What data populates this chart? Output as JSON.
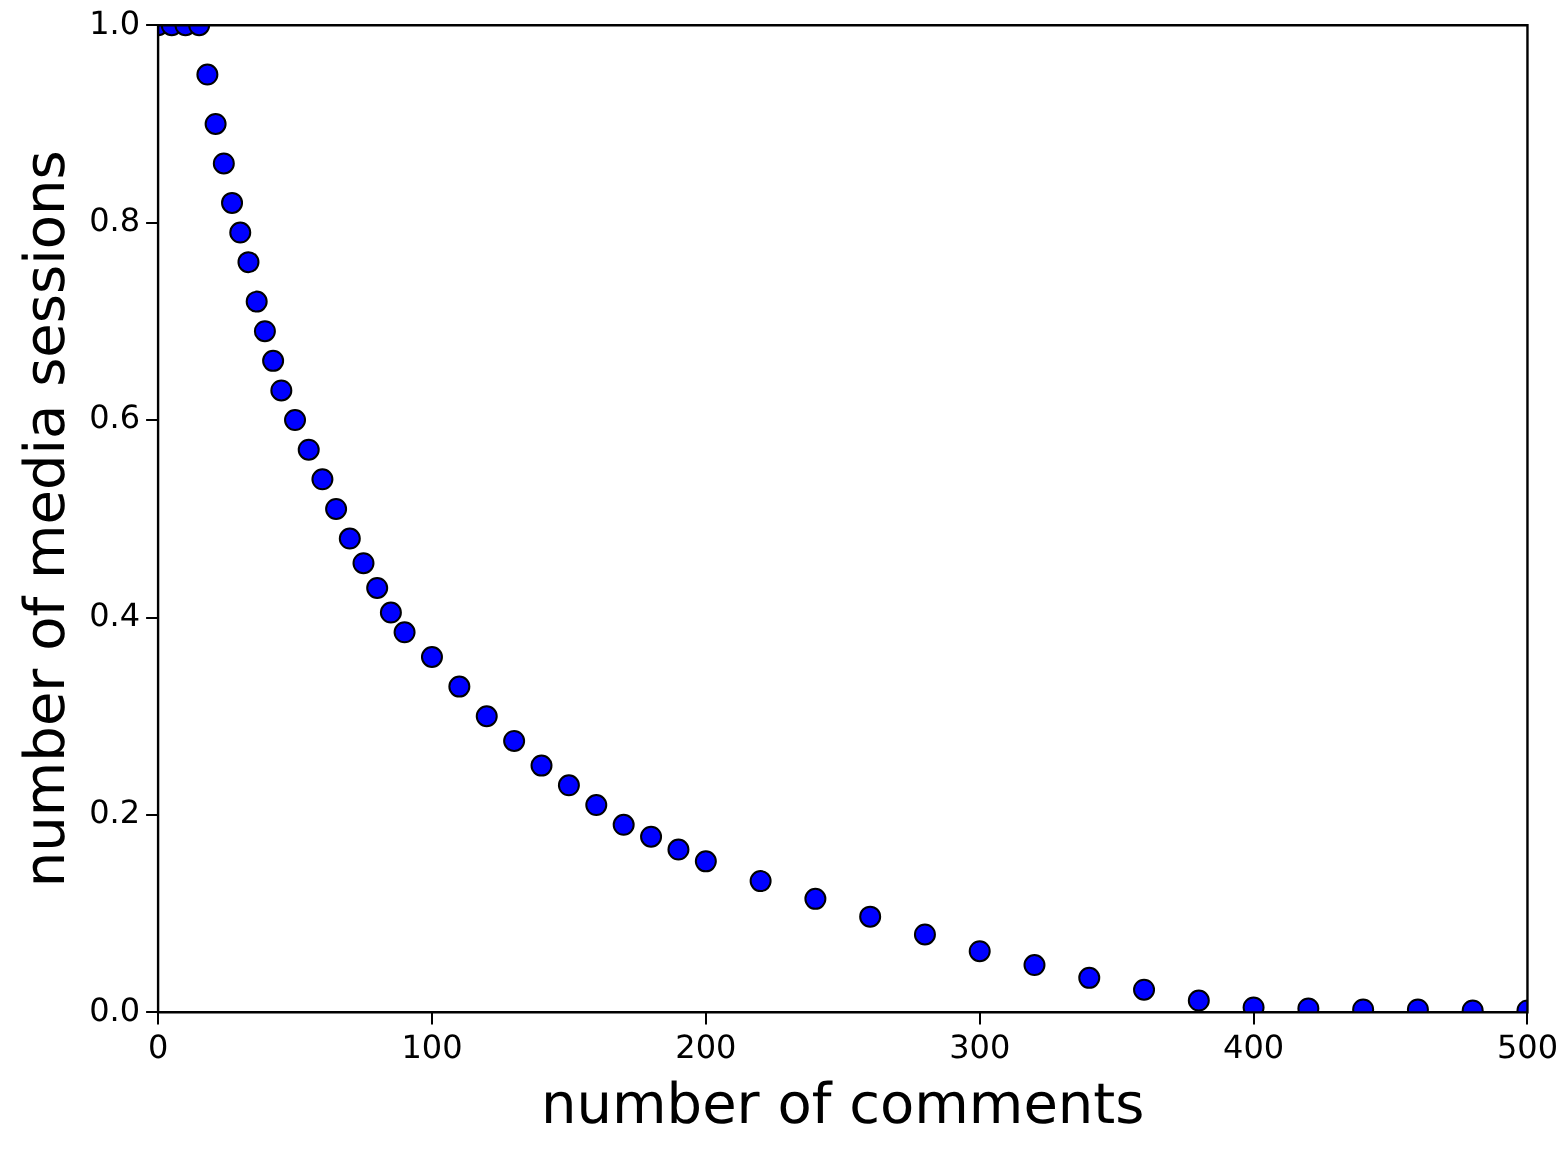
{
  "chart_data": {
    "type": "scatter",
    "xlabel": "number of comments",
    "ylabel": "number of media sessions",
    "x": [
      0,
      5,
      10,
      15,
      18,
      21,
      24,
      27,
      30,
      33,
      36,
      39,
      42,
      45,
      50,
      55,
      60,
      65,
      70,
      75,
      80,
      85,
      90,
      100,
      110,
      120,
      130,
      140,
      150,
      160,
      170,
      180,
      190,
      200,
      220,
      240,
      260,
      280,
      300,
      320,
      340,
      360,
      380,
      400,
      420,
      440,
      460,
      480,
      500
    ],
    "series": [
      {
        "color": "#0000ff",
        "values": [
          1,
          1,
          1,
          1,
          0.95,
          0.9,
          0.86,
          0.82,
          0.79,
          0.76,
          0.72,
          0.69,
          0.66,
          0.63,
          0.6,
          0.57,
          0.54,
          0.51,
          0.48,
          0.455,
          0.43,
          0.405,
          0.385,
          0.36,
          0.33,
          0.3,
          0.275,
          0.25,
          0.23,
          0.21,
          0.19,
          0.178,
          0.165,
          0.153,
          0.133,
          0.115,
          0.097,
          0.079,
          0.062,
          0.048,
          0.035,
          0.023,
          0.012,
          0.005,
          0.004,
          0.003,
          0.003,
          0.002,
          0.002
        ]
      }
    ],
    "xlim": [
      0,
      500
    ],
    "ylim": [
      0,
      1
    ],
    "xticks": [
      0,
      100,
      200,
      300,
      400,
      500
    ],
    "yticks": [
      {
        "value": 0,
        "label": "0.0"
      },
      {
        "value": 0.2,
        "label": "0.2"
      },
      {
        "value": 0.4,
        "label": "0.4"
      },
      {
        "value": 0.6,
        "label": "0.6"
      },
      {
        "value": 0.8,
        "label": "0.8"
      },
      {
        "value": 1,
        "label": "1.0"
      }
    ],
    "grid": false,
    "legend": false,
    "marker": "circle"
  }
}
